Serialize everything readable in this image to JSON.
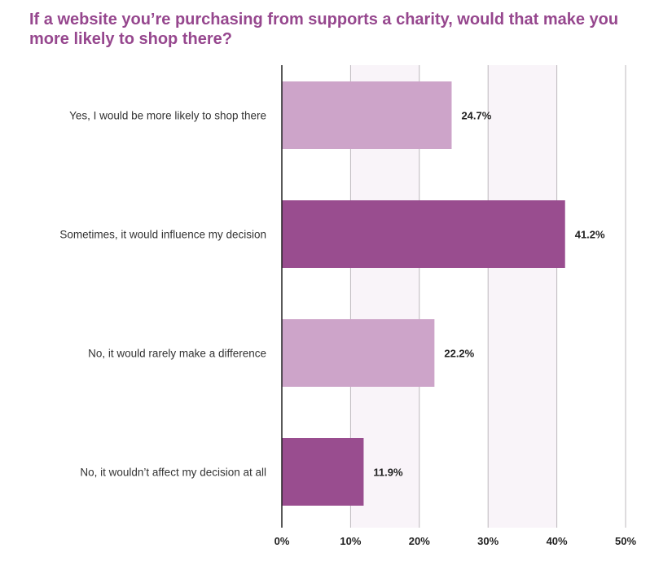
{
  "colors": {
    "title": "#96478e",
    "bar_light": "#cda4c9",
    "bar_dark": "#994d8f",
    "stripe": "#f9f4f9",
    "gridline": "#bdb8bd",
    "axis": "#222222"
  },
  "chart_data": {
    "type": "bar",
    "orientation": "horizontal",
    "title": "If a website you’re purchasing from supports a charity, would that make you more likely to shop there?",
    "categories": [
      "Yes, I would be more likely to shop there",
      "Sometimes, it would influence my decision",
      "No, it would rarely make a difference",
      "No, it wouldn’t affect my decision at all"
    ],
    "values": [
      24.7,
      41.2,
      22.2,
      11.9
    ],
    "value_labels": [
      "24.7%",
      "41.2%",
      "22.2%",
      "11.9%"
    ],
    "bar_colors": [
      "#cda4c9",
      "#994d8f",
      "#cda4c9",
      "#994d8f"
    ],
    "xlim": [
      0,
      50
    ],
    "xticks": [
      0,
      10,
      20,
      30,
      40,
      50
    ],
    "xtick_labels": [
      "0%",
      "10%",
      "20%",
      "30%",
      "40%",
      "50%"
    ],
    "xlabel": "",
    "ylabel": "",
    "grid": true,
    "legend": "none"
  }
}
